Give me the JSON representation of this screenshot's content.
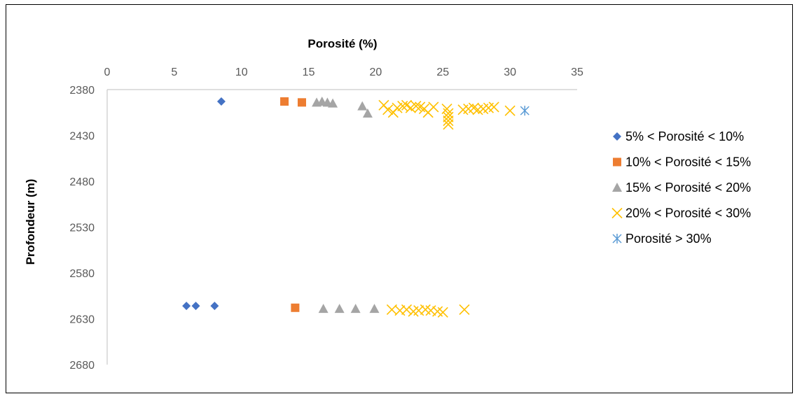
{
  "chart_data": {
    "type": "scatter",
    "title": "",
    "xlabel": "Porosité (%)",
    "ylabel": "Profondeur (m)",
    "xlim": [
      0,
      35
    ],
    "ylim": [
      2380,
      2680
    ],
    "y_inverted": true,
    "x_axis_position": "top",
    "x_ticks": [
      "0",
      "5",
      "10",
      "15",
      "20",
      "25",
      "30",
      "35"
    ],
    "y_ticks": [
      "2380",
      "2430",
      "2480",
      "2530",
      "2580",
      "2630",
      "2680"
    ],
    "grid": false,
    "legend_position": "right",
    "series": [
      {
        "name": "5% < Porosité < 10%",
        "marker": "diamond",
        "color": "#4472C4",
        "points": [
          [
            8.5,
            2393
          ],
          [
            5.9,
            2616
          ],
          [
            6.6,
            2616
          ],
          [
            8.0,
            2616
          ]
        ]
      },
      {
        "name": "10% < Porosité < 15%",
        "marker": "square",
        "color": "#ED7D31",
        "points": [
          [
            13.2,
            2393
          ],
          [
            14.5,
            2394
          ],
          [
            14.0,
            2618
          ]
        ]
      },
      {
        "name": "15% < Porosité < 20%",
        "marker": "triangle",
        "color": "#A5A5A5",
        "points": [
          [
            15.6,
            2394
          ],
          [
            16.0,
            2393
          ],
          [
            16.4,
            2394
          ],
          [
            16.8,
            2395
          ],
          [
            19.0,
            2398
          ],
          [
            19.4,
            2406
          ],
          [
            16.1,
            2619
          ],
          [
            17.3,
            2619
          ],
          [
            18.5,
            2619
          ],
          [
            19.9,
            2619
          ]
        ]
      },
      {
        "name": "20% < Porosité < 30%",
        "marker": "x",
        "color": "#FFC000",
        "points": [
          [
            20.6,
            2397
          ],
          [
            20.9,
            2402
          ],
          [
            21.3,
            2405
          ],
          [
            21.6,
            2400
          ],
          [
            22.0,
            2398
          ],
          [
            22.3,
            2397
          ],
          [
            22.6,
            2400
          ],
          [
            23.0,
            2398
          ],
          [
            23.3,
            2399
          ],
          [
            23.6,
            2401
          ],
          [
            23.9,
            2405
          ],
          [
            24.3,
            2399
          ],
          [
            25.3,
            2401
          ],
          [
            25.4,
            2406
          ],
          [
            25.4,
            2410
          ],
          [
            25.4,
            2414
          ],
          [
            25.4,
            2418
          ],
          [
            26.5,
            2402
          ],
          [
            26.9,
            2401
          ],
          [
            27.3,
            2400
          ],
          [
            27.6,
            2402
          ],
          [
            28.0,
            2401
          ],
          [
            28.4,
            2400
          ],
          [
            28.8,
            2399
          ],
          [
            30.0,
            2403
          ],
          [
            21.2,
            2620
          ],
          [
            21.8,
            2621
          ],
          [
            22.3,
            2620
          ],
          [
            22.8,
            2622
          ],
          [
            23.2,
            2621
          ],
          [
            23.7,
            2620
          ],
          [
            24.1,
            2621
          ],
          [
            24.6,
            2622
          ],
          [
            25.0,
            2623
          ],
          [
            26.6,
            2620
          ]
        ]
      },
      {
        "name": "Porosité > 30%",
        "marker": "star",
        "color": "#5B9BD5",
        "points": [
          [
            31.1,
            2403
          ]
        ]
      }
    ]
  }
}
